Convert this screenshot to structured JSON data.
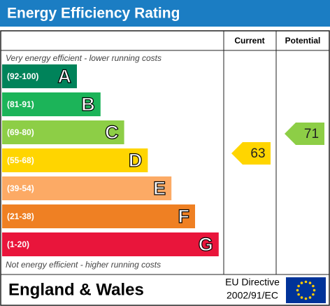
{
  "title": "Energy Efficiency Rating",
  "headers": {
    "current": "Current",
    "potential": "Potential"
  },
  "top_note": "Very energy efficient - lower running costs",
  "bottom_note": "Not energy efficient - higher running costs",
  "bands": [
    {
      "range": "(92-100)",
      "letter": "A",
      "color": "#00835a"
    },
    {
      "range": "(81-91)",
      "letter": "B",
      "color": "#1cb459"
    },
    {
      "range": "(69-80)",
      "letter": "C",
      "color": "#8dce46"
    },
    {
      "range": "(55-68)",
      "letter": "D",
      "color": "#ffd500"
    },
    {
      "range": "(39-54)",
      "letter": "E",
      "color": "#fcaa65"
    },
    {
      "range": "(21-38)",
      "letter": "F",
      "color": "#ef8023"
    },
    {
      "range": "(1-20)",
      "letter": "G",
      "color": "#e9153b"
    }
  ],
  "current": {
    "value": 63,
    "color": "#ffd500"
  },
  "potential": {
    "value": 71,
    "color": "#8dce46"
  },
  "footer": {
    "region": "England & Wales",
    "directive_line1": "EU Directive",
    "directive_line2": "2002/91/EC"
  }
}
